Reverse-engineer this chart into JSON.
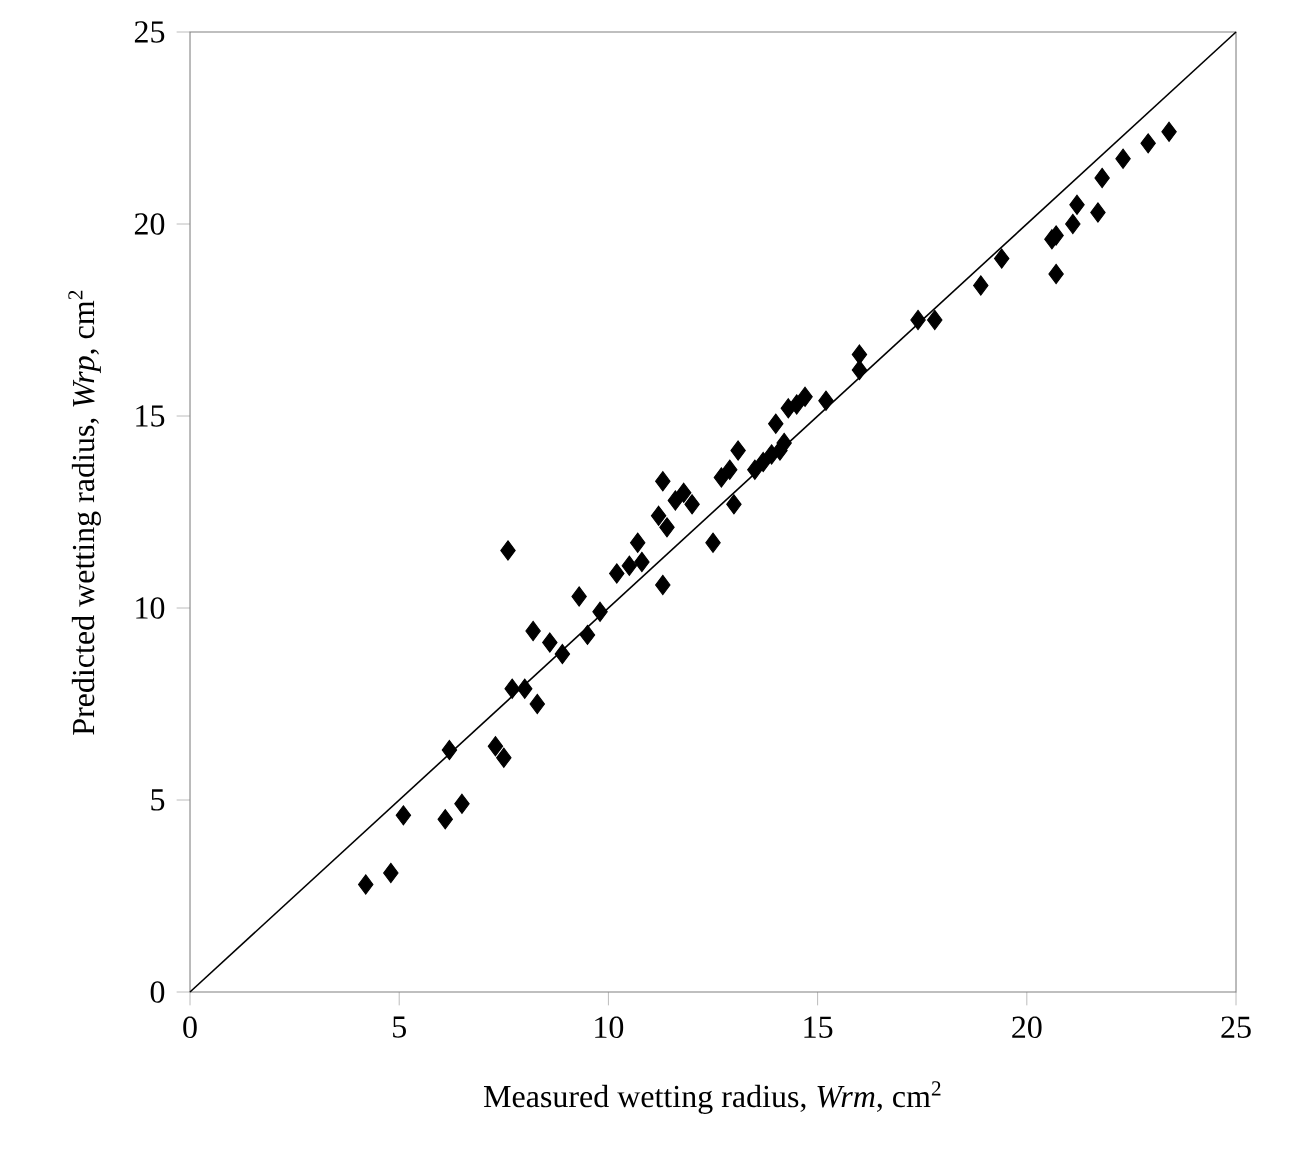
{
  "chart_data": {
    "type": "scatter",
    "xlabel": "Measured wetting radius, *Wrm*, cm$^{2}$",
    "ylabel": "Predicted wetting radius, *Wrp*, cm$^{2}$",
    "xlim": [
      0,
      25
    ],
    "ylim": [
      0,
      25
    ],
    "xticks": [
      0,
      5,
      10,
      15,
      20,
      25
    ],
    "yticks": [
      0,
      5,
      10,
      15,
      20,
      25
    ],
    "series": [
      {
        "color": "#000000",
        "marker": "diamond",
        "x": [
          4.2,
          4.8,
          5.1,
          6.1,
          6.2,
          6.5,
          7.3,
          7.5,
          7.6,
          7.7,
          8.0,
          8.2,
          8.3,
          8.6,
          8.9,
          9.3,
          9.5,
          9.8,
          10.2,
          10.5,
          10.7,
          10.8,
          11.2,
          11.3,
          11.3,
          11.4,
          11.6,
          11.8,
          12.0,
          12.5,
          12.7,
          12.9,
          13.0,
          13.1,
          13.5,
          13.7,
          13.9,
          14.0,
          14.1,
          14.2,
          14.3,
          14.5,
          14.7,
          15.2,
          16.0,
          16.0,
          17.4,
          17.8,
          18.9,
          19.4,
          20.6,
          20.7,
          20.7,
          21.1,
          21.2,
          21.7,
          21.8,
          22.3,
          22.9,
          23.4
        ],
        "values": [
          2.8,
          3.1,
          4.6,
          4.5,
          6.3,
          4.9,
          6.4,
          6.1,
          11.5,
          7.9,
          7.9,
          9.4,
          7.5,
          9.1,
          8.8,
          10.3,
          9.3,
          9.9,
          10.9,
          11.1,
          11.7,
          11.2,
          12.4,
          13.3,
          10.6,
          12.1,
          12.8,
          13.0,
          12.7,
          11.7,
          13.4,
          13.6,
          12.7,
          14.1,
          13.6,
          13.8,
          14.0,
          14.8,
          14.1,
          14.3,
          15.2,
          15.3,
          15.5,
          15.4,
          16.2,
          16.6,
          17.5,
          17.5,
          18.4,
          19.1,
          19.6,
          18.7,
          19.7,
          20.0,
          20.5,
          20.3,
          21.2,
          21.7,
          22.1,
          22.4
        ]
      },
      {
        "type": "line",
        "color": "#000000",
        "marker": "none",
        "line_style": "solid",
        "x": [
          0,
          25
        ],
        "values": [
          0,
          25
        ]
      }
    ]
  }
}
